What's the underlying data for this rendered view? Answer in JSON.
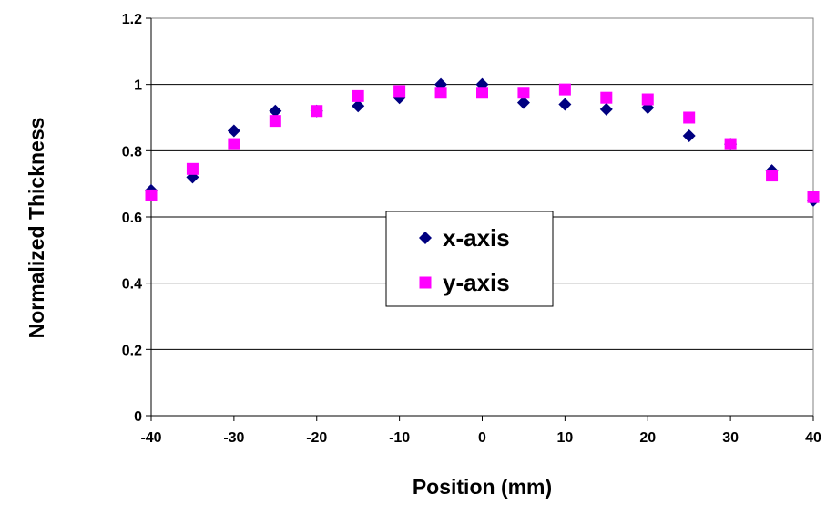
{
  "chart_data": {
    "type": "scatter",
    "title": "",
    "xlabel": "Position (mm)",
    "ylabel": "Normalized Thickness",
    "xlim": [
      -40,
      40
    ],
    "ylim": [
      0,
      1.2
    ],
    "xticks": [
      -40,
      -30,
      -20,
      -10,
      0,
      10,
      20,
      30,
      40
    ],
    "xtick_labels": [
      "-40",
      "-30",
      "-20",
      "-10",
      "0",
      "10",
      "20",
      "30",
      "40"
    ],
    "yticks": [
      0,
      0.2,
      0.4,
      0.6,
      0.8,
      1,
      1.2
    ],
    "ytick_labels": [
      "0",
      "0.2",
      "0.4",
      "0.6",
      "0.8",
      "1",
      "1.2"
    ],
    "grid": "horizontal major gridlines",
    "legend_position": "center",
    "series": [
      {
        "name": "x-axis",
        "marker": "diamond",
        "color": "#000080",
        "x": [
          -40,
          -35,
          -30,
          -25,
          -20,
          -15,
          -10,
          -5,
          0,
          5,
          10,
          15,
          20,
          25,
          30,
          35,
          40
        ],
        "y": [
          0.68,
          0.72,
          0.86,
          0.92,
          0.92,
          0.935,
          0.96,
          1.0,
          1.0,
          0.945,
          0.94,
          0.925,
          0.93,
          0.845,
          0.82,
          0.74,
          0.65
        ]
      },
      {
        "name": "y-axis",
        "marker": "square",
        "color": "#FF00FF",
        "x": [
          -40,
          -35,
          -30,
          -25,
          -20,
          -15,
          -10,
          -5,
          0,
          5,
          10,
          15,
          20,
          25,
          30,
          35,
          40
        ],
        "y": [
          0.665,
          0.745,
          0.82,
          0.89,
          0.92,
          0.965,
          0.98,
          0.975,
          0.975,
          0.975,
          0.985,
          0.96,
          0.955,
          0.9,
          0.82,
          0.725,
          0.66
        ]
      }
    ]
  }
}
